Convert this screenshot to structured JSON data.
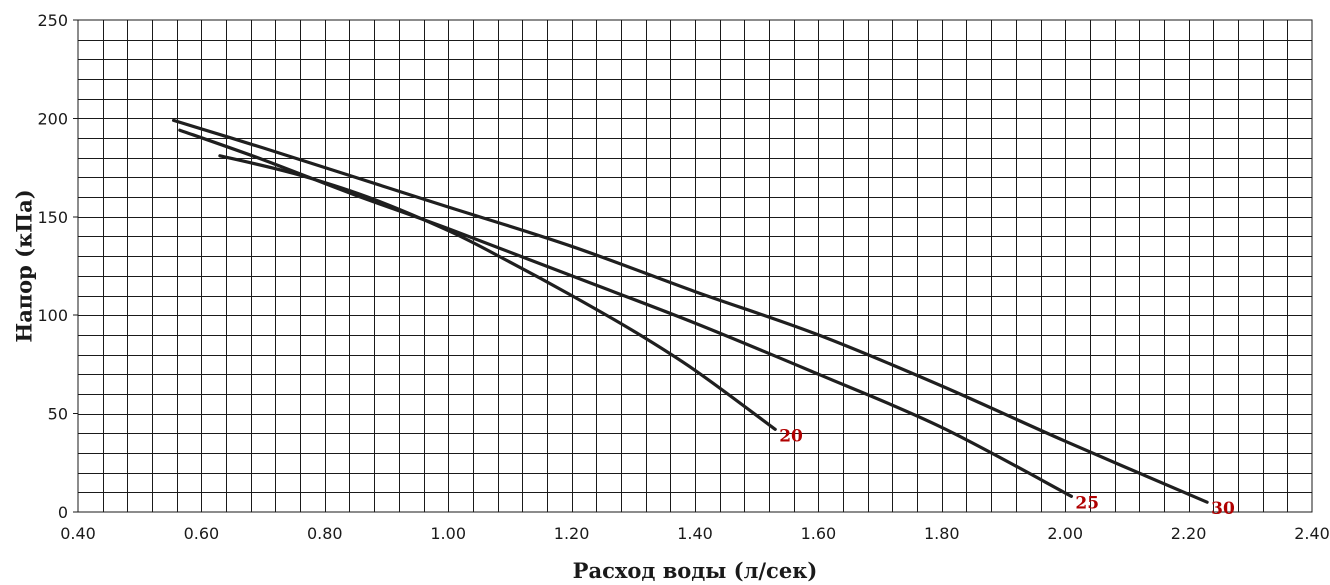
{
  "chart_data": {
    "type": "line",
    "xlabel": "Расход воды (л/сек)",
    "ylabel": "Напор (кПа)",
    "xlim": [
      0.4,
      2.4
    ],
    "ylim": [
      0,
      250
    ],
    "x_ticks": [
      "0.40",
      "0.60",
      "0.80",
      "1.00",
      "1.20",
      "1.40",
      "1.60",
      "1.80",
      "2.00",
      "2.20",
      "2.40"
    ],
    "y_ticks": [
      "0",
      "50",
      "100",
      "150",
      "200",
      "250"
    ],
    "grid": true,
    "x_minor_step": 0.04,
    "y_minor_step": 10,
    "series_label_color": "#b00000",
    "series": [
      {
        "name": "20",
        "x": [
          0.63,
          0.75,
          0.87,
          1.0,
          1.1,
          1.2,
          1.3,
          1.4,
          1.53
        ],
        "y": [
          181,
          172,
          160,
          143,
          127,
          110,
          92,
          72,
          42
        ]
      },
      {
        "name": "25",
        "x": [
          0.565,
          0.7,
          0.85,
          1.0,
          1.2,
          1.4,
          1.6,
          1.8,
          2.01
        ],
        "y": [
          194,
          179,
          161,
          144,
          120,
          96,
          70,
          43,
          8
        ]
      },
      {
        "name": "30",
        "x": [
          0.555,
          0.7,
          0.85,
          1.0,
          1.2,
          1.4,
          1.6,
          1.8,
          2.0,
          2.23
        ],
        "y": [
          199,
          185,
          170,
          155,
          135,
          112,
          90,
          64,
          36,
          5
        ]
      }
    ]
  }
}
